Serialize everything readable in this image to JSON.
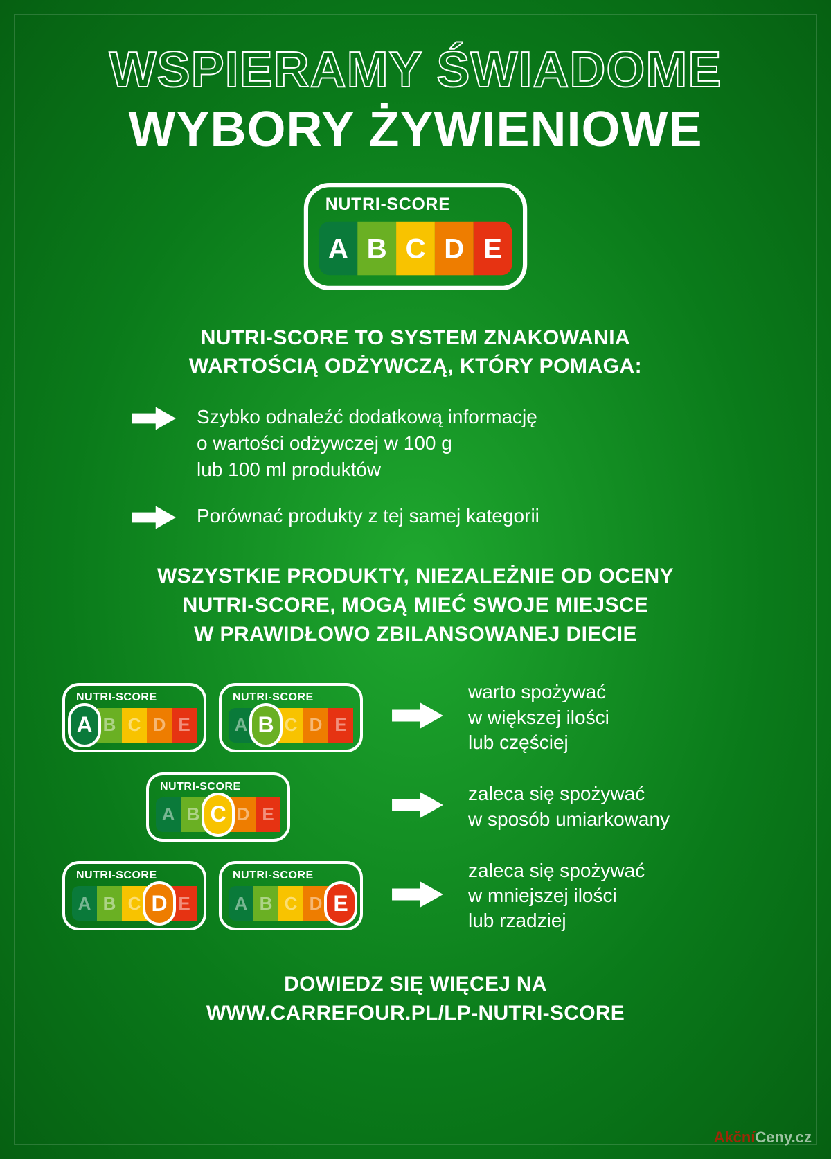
{
  "title": {
    "line1": "WSPIERAMY ŚWIADOME",
    "line2": "WYBORY ŻYWIENIOWE"
  },
  "nutriscore": {
    "label": "NUTRI-SCORE",
    "cells": [
      {
        "letter": "A",
        "color": "#0a7a3a"
      },
      {
        "letter": "B",
        "color": "#6ab023"
      },
      {
        "letter": "C",
        "color": "#f8c300"
      },
      {
        "letter": "D",
        "color": "#ee7d00"
      },
      {
        "letter": "E",
        "color": "#e63312"
      }
    ],
    "highlight_text_color": "#ffffff",
    "inactive_text_color": "rgba(255,255,255,0.45)"
  },
  "intro": "NUTRI-SCORE TO SYSTEM ZNAKOWANIA\nWARTOŚCIĄ ODŻYWCZĄ, KTÓRY POMAGA:",
  "bullets": [
    "Szybko odnaleźć dodatkową informację\no wartości odżywczej w 100 g\nlub 100 ml produktów",
    "Porównać produkty z tej samej kategorii"
  ],
  "mid": "WSZYSTKIE PRODUKTY, NIEZALEŻNIE OD OCENY\nNUTRI-SCORE, MOGĄ MIEĆ SWOJE MIEJSCE\nW PRAWIDŁOWO ZBILANSOWANEJ DIECIE",
  "rows": [
    {
      "highlights": [
        0,
        1
      ],
      "text": "warto spożywać\nw większej ilości\nlub częściej"
    },
    {
      "highlights": [
        2
      ],
      "text": "zaleca się spożywać\nw sposób umiarkowany"
    },
    {
      "highlights": [
        3,
        4
      ],
      "text": "zaleca się spożywać\nw mniejszej ilości\nlub rzadziej"
    }
  ],
  "footer": "DOWIEDZ SIĘ WIĘCEJ NA\nWWW.CARREFOUR.PL/LP-NUTRI-SCORE",
  "watermark": {
    "part1": "Akční",
    "part2": "Ceny.cz"
  },
  "arrow_icon": {
    "fill": "#ffffff"
  }
}
